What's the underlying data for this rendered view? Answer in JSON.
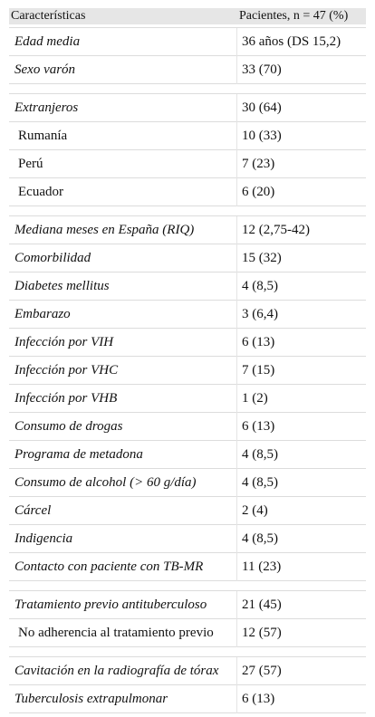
{
  "table": {
    "header": [
      "Características",
      "Pacientes, n = 47 (%)"
    ],
    "groups": [
      [
        [
          "Edad media",
          "36 años (DS 15,2)"
        ],
        [
          "Sexo varón",
          "33 (70)"
        ]
      ],
      [
        [
          "Extranjeros",
          "30 (64)"
        ],
        [
          "Rumanía",
          "10 (33)"
        ],
        [
          "Perú",
          "7 (23)"
        ],
        [
          "Ecuador",
          "6 (20)"
        ]
      ],
      [
        [
          "Mediana meses en España (RIQ)",
          "12 (2,75-42)"
        ],
        [
          "Comorbilidad",
          "15 (32)"
        ],
        [
          "Diabetes mellitus",
          "4 (8,5)"
        ],
        [
          "Embarazo",
          "3 (6,4)"
        ],
        [
          "Infección por VIH",
          "6 (13)"
        ],
        [
          "Infección por VHC",
          "7 (15)"
        ],
        [
          "Infección por VHB",
          "1 (2)"
        ],
        [
          "Consumo de drogas",
          "6 (13)"
        ],
        [
          "Programa de metadona",
          "4 (8,5)"
        ],
        [
          "Consumo de alcohol (> 60 g/día)",
          "4 (8,5)"
        ],
        [
          "Cárcel",
          "2 (4)"
        ],
        [
          "Indigencia",
          "4 (8,5)"
        ],
        [
          "Contacto con paciente con TB-MR",
          "11 (23)"
        ]
      ],
      [
        [
          "Tratamiento previo antituberculoso",
          "21 (45)"
        ],
        [
          "No adherencia al tratamiento previo",
          "12 (57)"
        ]
      ],
      [
        [
          "Cavitación en la radiografía de tórax",
          "27 (57)"
        ],
        [
          "Tuberculosis extrapulmonar",
          "6 (13)"
        ]
      ]
    ]
  }
}
